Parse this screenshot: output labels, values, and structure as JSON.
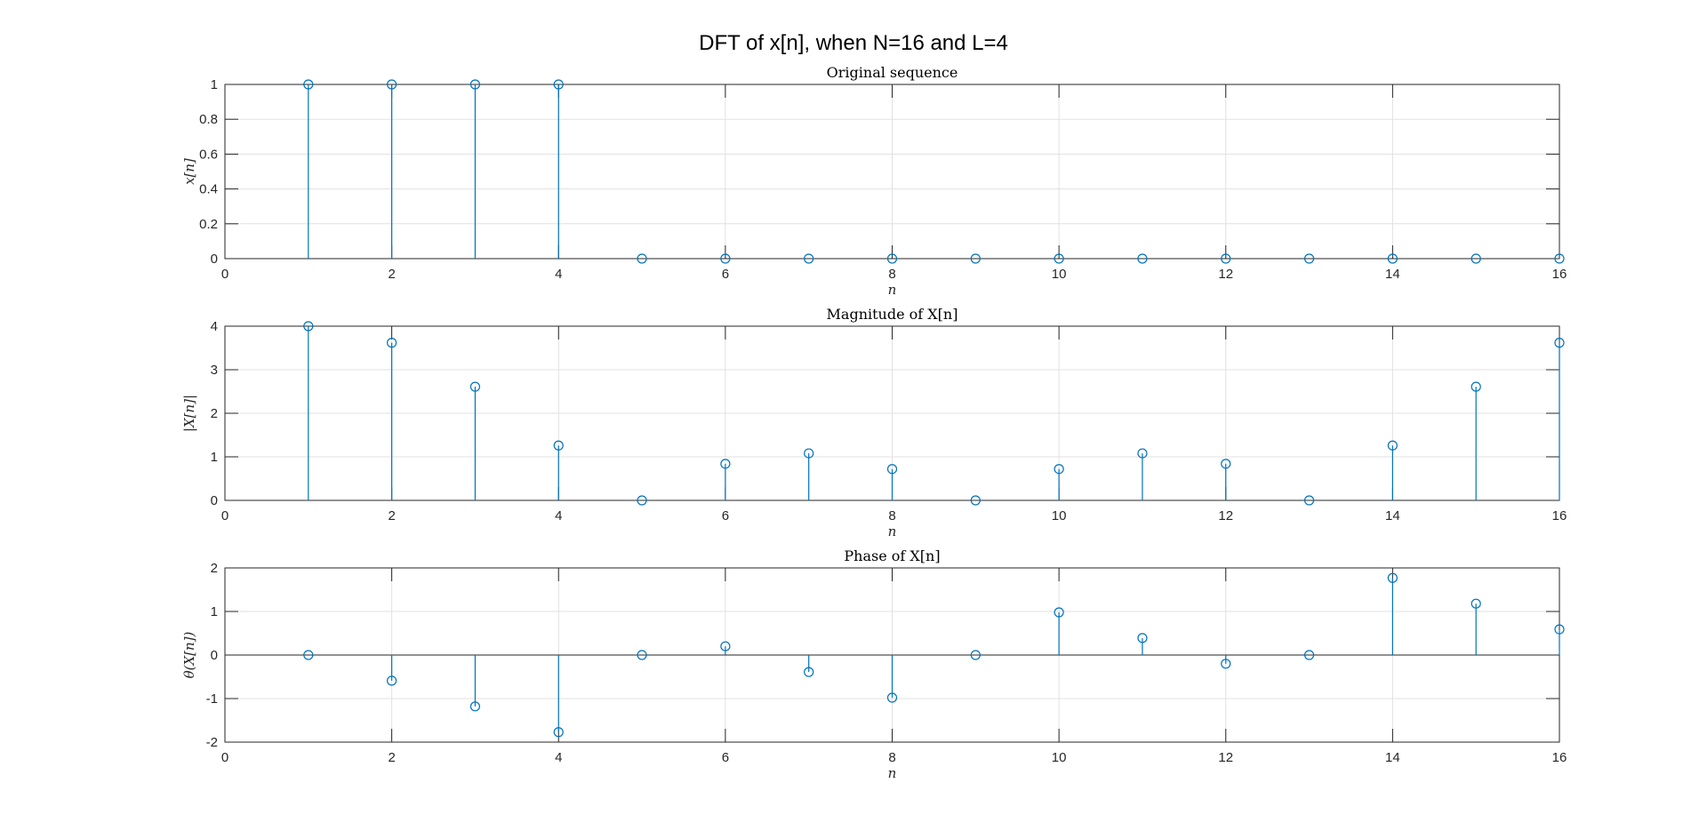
{
  "figure": {
    "suptitle": "DFT of x[n], when N=16 and L=4",
    "stem_color": "#0072BD"
  },
  "chart_data": [
    {
      "type": "stem",
      "title": "Original sequence",
      "xlabel": "n",
      "ylabel": "x[n]",
      "xlim": [
        0,
        16
      ],
      "ylim": [
        0,
        1
      ],
      "xticks": [
        0,
        2,
        4,
        6,
        8,
        10,
        12,
        14,
        16
      ],
      "yticks": [
        0,
        0.2,
        0.4,
        0.6,
        0.8,
        1
      ],
      "ytick_labels": [
        "0",
        "0.2",
        "0.4",
        "0.6",
        "0.8",
        "1"
      ],
      "grid": true,
      "x": [
        1,
        2,
        3,
        4,
        5,
        6,
        7,
        8,
        9,
        10,
        11,
        12,
        13,
        14,
        15,
        16
      ],
      "y": [
        1,
        1,
        1,
        1,
        0,
        0,
        0,
        0,
        0,
        0,
        0,
        0,
        0,
        0,
        0,
        0
      ]
    },
    {
      "type": "stem",
      "title": "Magnitude of X[n]",
      "xlabel": "n",
      "ylabel": "|X[n]|",
      "xlim": [
        0,
        16
      ],
      "ylim": [
        0,
        4
      ],
      "xticks": [
        0,
        2,
        4,
        6,
        8,
        10,
        12,
        14,
        16
      ],
      "yticks": [
        0,
        1,
        2,
        3,
        4
      ],
      "ytick_labels": [
        "0",
        "1",
        "2",
        "3",
        "4"
      ],
      "grid": true,
      "x": [
        1,
        2,
        3,
        4,
        5,
        6,
        7,
        8,
        9,
        10,
        11,
        12,
        13,
        14,
        15,
        16
      ],
      "y": [
        4,
        3.62,
        2.61,
        1.26,
        0,
        0.84,
        1.08,
        0.72,
        0,
        0.72,
        1.08,
        0.84,
        0,
        1.26,
        2.61,
        3.62
      ]
    },
    {
      "type": "stem",
      "title": "Phase of X[n]",
      "xlabel": "n",
      "ylabel": "θ(X[n])",
      "xlim": [
        0,
        16
      ],
      "ylim": [
        -2,
        2
      ],
      "xticks": [
        0,
        2,
        4,
        6,
        8,
        10,
        12,
        14,
        16
      ],
      "yticks": [
        -2,
        -1,
        0,
        1,
        2
      ],
      "ytick_labels": [
        "-2",
        "-1",
        "0",
        "1",
        "2"
      ],
      "grid": true,
      "x": [
        1,
        2,
        3,
        4,
        5,
        6,
        7,
        8,
        9,
        10,
        11,
        12,
        13,
        14,
        15,
        16
      ],
      "y": [
        0,
        -0.59,
        -1.18,
        -1.77,
        0,
        0.2,
        -0.39,
        -0.98,
        0,
        0.98,
        0.39,
        -0.2,
        0,
        1.77,
        1.18,
        0.59
      ]
    }
  ]
}
